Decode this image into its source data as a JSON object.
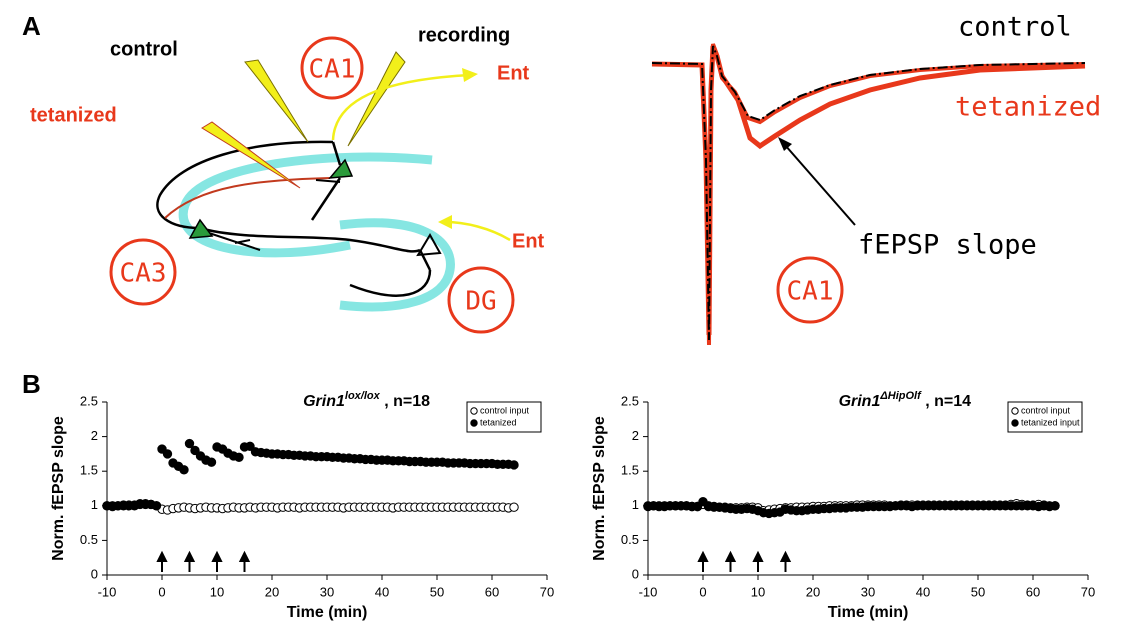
{
  "panel_a": {
    "label": "A",
    "diagram": {
      "control": "control",
      "recording": "recording",
      "tetanized": "tetanized",
      "ent_top": "Ent",
      "ent_bottom": "Ent",
      "ca1": "CA1",
      "ca3": "CA3",
      "dg": "DG"
    },
    "traces": {
      "control": "control",
      "tetanized": "tetanized",
      "slope": "fEPSP slope",
      "region": "CA1"
    }
  },
  "panel_b": {
    "label": "B"
  },
  "chart_data": [
    {
      "type": "scatter",
      "title": {
        "gene": "Grin1",
        "superscript": "lox/lox",
        "rest": " , n=18"
      },
      "x_label": "Time (min)",
      "y_label": "Norm. fEPSP slope",
      "xlim": [
        -10,
        70
      ],
      "xticks": [
        -10,
        0,
        10,
        20,
        30,
        40,
        50,
        60,
        70
      ],
      "ylim": [
        0,
        2.5
      ],
      "yticks": [
        0,
        0.5,
        1,
        1.5,
        2,
        2.5
      ],
      "legend": "upper right",
      "tetanus_times": [
        0,
        5,
        10,
        15
      ],
      "x": [
        -10,
        -9,
        -8,
        -7,
        -6,
        -5,
        -4,
        -3,
        -2,
        -1,
        0,
        1,
        2,
        3,
        4,
        5,
        6,
        7,
        8,
        9,
        10,
        11,
        12,
        13,
        14,
        15,
        16,
        17,
        18,
        19,
        20,
        21,
        22,
        23,
        24,
        25,
        26,
        27,
        28,
        29,
        30,
        31,
        32,
        33,
        34,
        35,
        36,
        37,
        38,
        39,
        40,
        41,
        42,
        43,
        44,
        45,
        46,
        47,
        48,
        49,
        50,
        51,
        52,
        53,
        54,
        55,
        56,
        57,
        58,
        59,
        60,
        61,
        62,
        63,
        64
      ],
      "series": [
        {
          "name": "control input",
          "color": "#000000",
          "marker_fill": "#ffffff",
          "values": [
            1.0,
            0.99,
            1.0,
            1.0,
            1.01,
            1.0,
            1.02,
            1.03,
            1.02,
            1.0,
            0.95,
            0.94,
            0.96,
            0.97,
            0.98,
            0.97,
            0.96,
            0.97,
            0.98,
            0.97,
            0.97,
            0.96,
            0.97,
            0.98,
            0.97,
            0.97,
            0.98,
            0.97,
            0.98,
            0.98,
            0.98,
            0.97,
            0.98,
            0.98,
            0.98,
            0.97,
            0.98,
            0.98,
            0.98,
            0.98,
            0.98,
            0.98,
            0.98,
            0.97,
            0.98,
            0.98,
            0.98,
            0.98,
            0.98,
            0.98,
            0.98,
            0.98,
            0.97,
            0.98,
            0.98,
            0.98,
            0.98,
            0.98,
            0.98,
            0.98,
            0.98,
            0.98,
            0.98,
            0.98,
            0.98,
            0.98,
            0.98,
            0.98,
            0.98,
            0.98,
            0.98,
            0.98,
            0.98,
            0.97,
            0.98
          ]
        },
        {
          "name": "tetanized",
          "color": "#000000",
          "marker_fill": "#000000",
          "values": [
            1.0,
            1.0,
            1.0,
            1.01,
            1.0,
            1.01,
            1.03,
            1.02,
            1.02,
            1.0,
            1.82,
            1.75,
            1.62,
            1.57,
            1.52,
            1.9,
            1.8,
            1.72,
            1.66,
            1.63,
            1.85,
            1.82,
            1.76,
            1.72,
            1.7,
            1.85,
            1.86,
            1.78,
            1.77,
            1.76,
            1.75,
            1.75,
            1.74,
            1.74,
            1.73,
            1.73,
            1.72,
            1.72,
            1.71,
            1.71,
            1.71,
            1.7,
            1.7,
            1.69,
            1.69,
            1.68,
            1.68,
            1.67,
            1.67,
            1.66,
            1.66,
            1.66,
            1.65,
            1.65,
            1.65,
            1.64,
            1.64,
            1.64,
            1.63,
            1.63,
            1.63,
            1.63,
            1.62,
            1.62,
            1.62,
            1.62,
            1.61,
            1.61,
            1.61,
            1.61,
            1.61,
            1.6,
            1.6,
            1.6,
            1.59
          ]
        }
      ]
    },
    {
      "type": "scatter",
      "title": {
        "gene": "Grin1",
        "superscript": "ΔHipOlf",
        "rest": " , n=14"
      },
      "x_label": "Time (min)",
      "y_label": "Norm. fEPSP slope",
      "xlim": [
        -10,
        70
      ],
      "xticks": [
        -10,
        0,
        10,
        20,
        30,
        40,
        50,
        60,
        70
      ],
      "ylim": [
        0,
        2.5
      ],
      "yticks": [
        0,
        0.5,
        1,
        1.5,
        2,
        2.5
      ],
      "legend": "upper right",
      "tetanus_times": [
        0,
        5,
        10,
        15
      ],
      "x": [
        -10,
        -9,
        -8,
        -7,
        -6,
        -5,
        -4,
        -3,
        -2,
        -1,
        0,
        1,
        2,
        3,
        4,
        5,
        6,
        7,
        8,
        9,
        10,
        11,
        12,
        13,
        14,
        15,
        16,
        17,
        18,
        19,
        20,
        21,
        22,
        23,
        24,
        25,
        26,
        27,
        28,
        29,
        30,
        31,
        32,
        33,
        34,
        35,
        36,
        37,
        38,
        39,
        40,
        41,
        42,
        43,
        44,
        45,
        46,
        47,
        48,
        49,
        50,
        51,
        52,
        53,
        54,
        55,
        56,
        57,
        58,
        59,
        60,
        61,
        62,
        63,
        64
      ],
      "series": [
        {
          "name": "control input",
          "color": "#000000",
          "marker_fill": "#ffffff",
          "values": [
            1.0,
            1.0,
            0.99,
            1.0,
            1.0,
            1.0,
            1.0,
            1.0,
            0.99,
            0.99,
            1.02,
            0.99,
            0.98,
            0.98,
            0.98,
            0.97,
            0.97,
            0.97,
            0.98,
            0.98,
            0.97,
            0.93,
            0.94,
            0.95,
            0.96,
            0.97,
            0.97,
            0.98,
            0.98,
            0.98,
            0.99,
            0.99,
            0.99,
            1.0,
            1.0,
            1.0,
            1.0,
            1.0,
            1.01,
            1.01,
            1.01,
            1.01,
            1.01,
            1.01,
            1.0,
            1.0,
            1.01,
            1.01,
            1.01,
            1.01,
            1.01,
            1.01,
            1.01,
            1.01,
            1.01,
            1.01,
            1.01,
            1.01,
            1.01,
            1.01,
            1.01,
            1.01,
            1.01,
            1.01,
            1.01,
            1.01,
            1.02,
            1.03,
            1.02,
            1.01,
            1.01,
            1.02,
            1.01,
            1.0,
            1.0
          ]
        },
        {
          "name": "tetanized input",
          "color": "#000000",
          "marker_fill": "#000000",
          "values": [
            0.99,
            1.0,
            1.0,
            0.99,
            1.0,
            1.0,
            1.0,
            1.0,
            0.99,
            0.99,
            1.06,
            1.0,
            0.99,
            0.98,
            0.97,
            0.96,
            0.95,
            0.95,
            0.96,
            0.95,
            0.93,
            0.9,
            0.89,
            0.9,
            0.91,
            0.95,
            0.94,
            0.93,
            0.93,
            0.94,
            0.95,
            0.95,
            0.96,
            0.96,
            0.97,
            0.97,
            0.97,
            0.98,
            0.98,
            0.98,
            0.99,
            0.99,
            0.99,
            0.99,
            0.99,
            1.0,
            1.0,
            1.0,
            0.99,
            1.0,
            1.0,
            1.0,
            1.0,
            1.0,
            1.0,
            1.0,
            1.0,
            1.0,
            1.0,
            1.0,
            1.0,
            1.0,
            1.0,
            1.0,
            1.0,
            1.0,
            1.0,
            1.0,
            1.0,
            1.0,
            1.0,
            0.99,
            1.0,
            0.99,
            1.0
          ]
        }
      ]
    }
  ]
}
